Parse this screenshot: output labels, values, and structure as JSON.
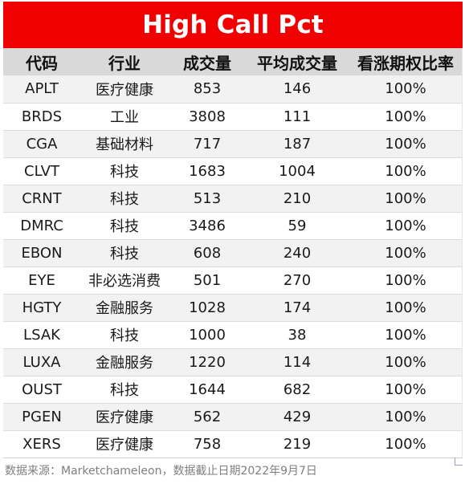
{
  "title": "High Call Pct",
  "headers": [
    "代码",
    "行业",
    "成交量",
    "平均成交量",
    "看涨期权比率"
  ],
  "rows": [
    [
      "APLT",
      "医疗健康",
      "853",
      "146",
      "100%"
    ],
    [
      "BRDS",
      "工业",
      "3808",
      "111",
      "100%"
    ],
    [
      "CGA",
      "基础材料",
      "717",
      "187",
      "100%"
    ],
    [
      "CLVT",
      "科技",
      "1683",
      "1004",
      "100%"
    ],
    [
      "CRNT",
      "科技",
      "513",
      "210",
      "100%"
    ],
    [
      "DMRC",
      "科技",
      "3486",
      "59",
      "100%"
    ],
    [
      "EBON",
      "科技",
      "608",
      "240",
      "100%"
    ],
    [
      "EYE",
      "非必选消费",
      "501",
      "270",
      "100%"
    ],
    [
      "HGTY",
      "金融服务",
      "1028",
      "174",
      "100%"
    ],
    [
      "LSAK",
      "科技",
      "1000",
      "38",
      "100%"
    ],
    [
      "LUXA",
      "金融服务",
      "1220",
      "114",
      "100%"
    ],
    [
      "OUST",
      "科技",
      "1644",
      "682",
      "100%"
    ],
    [
      "PGEN",
      "医疗健康",
      "562",
      "429",
      "100%"
    ],
    [
      "XERS",
      "医疗健康",
      "758",
      "219",
      "100%"
    ]
  ],
  "source": "数据来源：Marketchameleon，数据截止日期2022年9月7日",
  "colors": {
    "title_bg": "#f00000",
    "title_text": "#ffffff",
    "header_bg": "#d9d9d9",
    "row_odd_bg": "#f2f2f2",
    "row_even_bg": "#ffffff",
    "source_text": "#7f7f7f"
  }
}
